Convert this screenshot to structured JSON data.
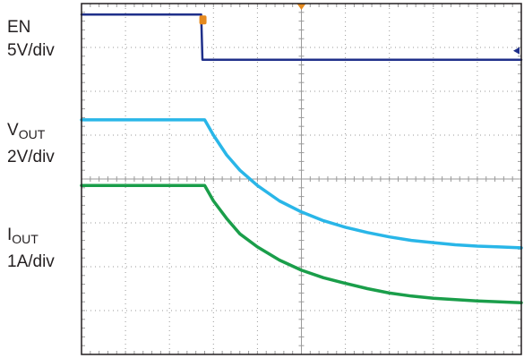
{
  "labels": {
    "en_name": "EN",
    "en_scale": "5V/div",
    "vout_name_main": "V",
    "vout_name_sub": "OUT",
    "vout_scale": "2V/div",
    "iout_name_main": "I",
    "iout_name_sub": "OUT",
    "iout_scale": "1A/div"
  },
  "chart_data": {
    "type": "line",
    "title": "",
    "xlabel": "",
    "ylabel": "",
    "grid": true,
    "x_range_div": [
      0,
      10
    ],
    "y_range_div": [
      0,
      8
    ],
    "x_divisions": 10,
    "y_divisions": 8,
    "series": [
      {
        "name": "EN",
        "color": "#1f2f8a",
        "x_div": [
          0,
          2.72,
          2.75,
          10
        ],
        "y_div": [
          7.75,
          7.75,
          6.72,
          6.72
        ]
      },
      {
        "name": "VOUT",
        "color": "#29b6e8",
        "x_div": [
          0,
          2.8,
          3.0,
          3.3,
          3.6,
          4.0,
          4.5,
          5.0,
          5.5,
          6.0,
          6.5,
          7.0,
          7.5,
          8.0,
          8.5,
          9.0,
          9.5,
          10
        ],
        "y_div": [
          5.35,
          5.35,
          5.0,
          4.55,
          4.2,
          3.85,
          3.5,
          3.25,
          3.05,
          2.9,
          2.78,
          2.68,
          2.6,
          2.55,
          2.5,
          2.47,
          2.45,
          2.43
        ]
      },
      {
        "name": "IOUT",
        "color": "#1a9e4a",
        "x_div": [
          0,
          2.8,
          3.0,
          3.3,
          3.6,
          4.0,
          4.5,
          5.0,
          5.5,
          6.0,
          6.5,
          7.0,
          7.5,
          8.0,
          8.5,
          9.0,
          9.5,
          10
        ],
        "y_div": [
          3.85,
          3.85,
          3.5,
          3.1,
          2.75,
          2.45,
          2.15,
          1.92,
          1.75,
          1.62,
          1.5,
          1.4,
          1.33,
          1.28,
          1.25,
          1.22,
          1.2,
          1.18
        ]
      }
    ]
  },
  "colors": {
    "frame": "#231f20",
    "grid": "#9a9a9a",
    "trigger_marker": "#e58a1f",
    "en_trace": "#1f2f8a",
    "vout_trace": "#29b6e8",
    "iout_trace": "#1a9e4a"
  }
}
